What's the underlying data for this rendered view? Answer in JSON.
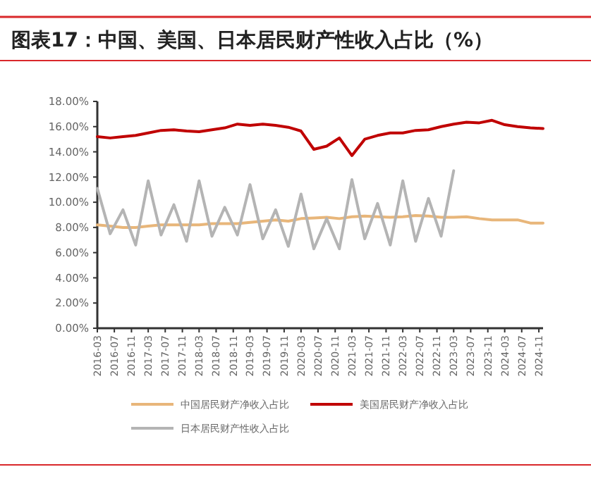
{
  "chart_data": {
    "type": "line",
    "title": "图表17：中国、美国、日本居民财产性收入占比（%）",
    "x": [
      "2016-03",
      "2016-06",
      "2016-09",
      "2016-12",
      "2017-03",
      "2017-06",
      "2017-09",
      "2017-12",
      "2018-03",
      "2018-06",
      "2018-09",
      "2018-12",
      "2019-03",
      "2019-06",
      "2019-09",
      "2019-12",
      "2020-03",
      "2020-06",
      "2020-09",
      "2020-12",
      "2021-03",
      "2021-06",
      "2021-09",
      "2021-12",
      "2022-03",
      "2022-06",
      "2022-09",
      "2022-12",
      "2023-03",
      "2023-06",
      "2023-09",
      "2023-12",
      "2024-03",
      "2024-06",
      "2024-09",
      "2024-12"
    ],
    "series": [
      {
        "name": "中国居民财产净收入占比",
        "color": "#e8b67a",
        "values": [
          8.2,
          8.1,
          8.0,
          8.0,
          8.1,
          8.2,
          8.2,
          8.2,
          8.2,
          8.3,
          8.3,
          8.3,
          8.4,
          8.5,
          8.6,
          8.5,
          8.7,
          8.75,
          8.8,
          8.7,
          8.85,
          8.9,
          8.85,
          8.8,
          8.85,
          8.95,
          8.9,
          8.8,
          8.8,
          8.85,
          8.7,
          8.6,
          8.6,
          8.6,
          8.35,
          8.35
        ]
      },
      {
        "name": "美国居民财产净收入占比",
        "color": "#c00000",
        "values": [
          15.2,
          15.1,
          15.2,
          15.3,
          15.5,
          15.7,
          15.75,
          15.65,
          15.6,
          15.75,
          15.9,
          16.2,
          16.1,
          16.2,
          16.1,
          15.95,
          15.65,
          14.2,
          14.45,
          15.1,
          13.7,
          15.0,
          15.3,
          15.5,
          15.5,
          15.7,
          15.75,
          16.0,
          16.2,
          16.35,
          16.3,
          16.5,
          16.15,
          16.0,
          15.9,
          15.85
        ]
      },
      {
        "name": "日本居民财产性收入占比",
        "color": "#b4b4b4",
        "values": [
          11.1,
          7.5,
          9.4,
          6.6,
          11.7,
          7.4,
          9.8,
          6.9,
          11.7,
          7.3,
          9.6,
          7.4,
          11.4,
          7.1,
          9.4,
          6.5,
          10.65,
          6.3,
          8.7,
          6.3,
          11.8,
          7.1,
          9.9,
          6.6,
          11.7,
          6.9,
          10.3,
          7.3,
          12.5,
          null,
          null,
          null,
          null,
          null,
          null,
          null
        ]
      }
    ],
    "xlim": [
      "2016-03",
      "2024-12"
    ],
    "xticks": [
      "2016-03",
      "2016-07",
      "2016-11",
      "2017-03",
      "2017-07",
      "2017-11",
      "2018-03",
      "2018-07",
      "2018-11",
      "2019-03",
      "2019-07",
      "2019-11",
      "2020-03",
      "2020-07",
      "2020-11",
      "2021-03",
      "2021-07",
      "2021-11",
      "2022-03",
      "2022-07",
      "2022-11",
      "2023-03",
      "2023-07",
      "2023-11",
      "2024-03",
      "2024-07",
      "2024-11"
    ],
    "ylim": [
      0,
      18
    ],
    "yticks": [
      {
        "value": 0,
        "label": "0.00%"
      },
      {
        "value": 2,
        "label": "2.00%"
      },
      {
        "value": 4,
        "label": "4.00%"
      },
      {
        "value": 6,
        "label": "6.00%"
      },
      {
        "value": 8,
        "label": "8.00%"
      },
      {
        "value": 10,
        "label": "10.00%"
      },
      {
        "value": 12,
        "label": "12.00%"
      },
      {
        "value": 14,
        "label": "14.00%"
      },
      {
        "value": 16,
        "label": "16.00%"
      },
      {
        "value": 18,
        "label": "18.00%"
      }
    ],
    "grid": false,
    "legend": "bottom",
    "marker": "none",
    "line_style": "solid"
  }
}
